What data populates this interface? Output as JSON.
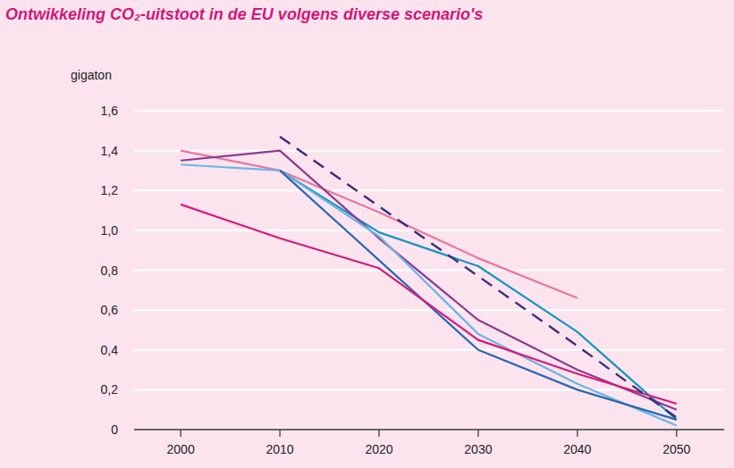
{
  "chart_data": {
    "type": "line",
    "title": "Ontwikkeling CO₂-uitstoot in de EU volgens diverse scenario's",
    "y_label": "gigaton",
    "x": [
      2000,
      2010,
      2020,
      2030,
      2040,
      2050
    ],
    "xlim": [
      1995.3,
      2054.8
    ],
    "xticks": [
      2000,
      2010,
      2020,
      2030,
      2040,
      2050
    ],
    "ylim": [
      0,
      1.6
    ],
    "yticks": [
      0,
      {
        "value": 0.2,
        "label": "0,2"
      },
      {
        "value": 0.4,
        "label": "0,4"
      },
      {
        "value": 0.6,
        "label": "0,6"
      },
      {
        "value": 0.8,
        "label": "0,8"
      },
      {
        "value": 1.0,
        "label": "1,0"
      },
      {
        "value": 1.2,
        "label": "1,2"
      },
      {
        "value": 1.4,
        "label": "1,4"
      },
      {
        "value": 1.6,
        "label": "1,6"
      }
    ],
    "grid": true,
    "series": [
      {
        "color": "#e9769e",
        "line_style": "solid",
        "values": [
          1.4,
          1.3,
          1.09,
          0.86,
          0.66,
          null
        ]
      },
      {
        "color": "#1796bf",
        "line_style": "solid",
        "values": [
          null,
          1.3,
          0.99,
          0.82,
          0.49,
          0.05
        ]
      },
      {
        "color": "#8c3b8f",
        "line_style": "solid",
        "values": [
          1.35,
          1.4,
          0.96,
          0.55,
          0.3,
          0.1
        ]
      },
      {
        "color": "#6bb5e6",
        "line_style": "solid",
        "values": [
          1.33,
          1.3,
          0.97,
          0.48,
          0.23,
          0.02
        ]
      },
      {
        "color": "#2869b2",
        "line_style": "solid",
        "values": [
          null,
          1.3,
          0.85,
          0.4,
          0.2,
          0.05
        ]
      },
      {
        "color": "#d6197c",
        "line_style": "solid",
        "values": [
          1.13,
          0.96,
          0.81,
          0.45,
          0.28,
          0.13
        ]
      },
      {
        "color": "#3a2d7a",
        "line_style": "dashed",
        "values": [
          null,
          1.47,
          1.12,
          0.77,
          0.42,
          0.06
        ]
      }
    ]
  }
}
